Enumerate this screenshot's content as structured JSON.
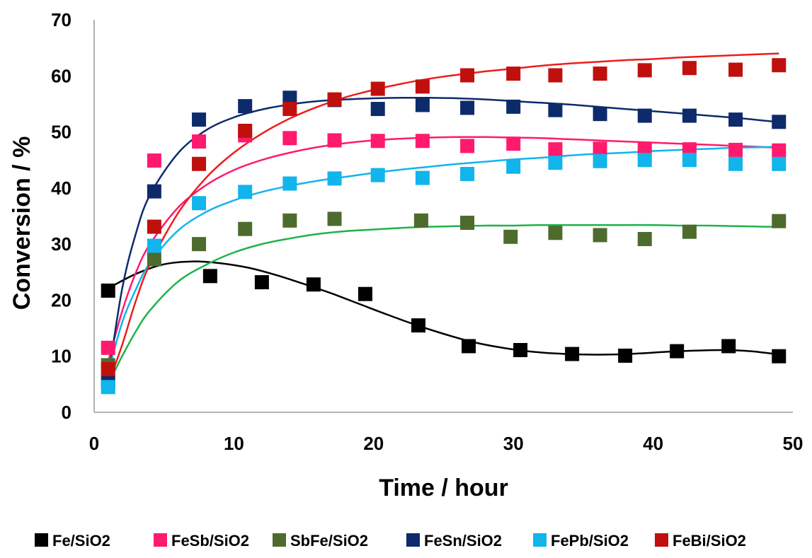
{
  "chart_data": {
    "type": "scatter",
    "xlabel": "Time / hour",
    "ylabel": "Conversion / %",
    "xlim": [
      0,
      50
    ],
    "ylim": [
      0,
      70
    ],
    "xticks": [
      "0",
      "10",
      "20",
      "30",
      "40",
      "50"
    ],
    "yticks": [
      "0",
      "10",
      "20",
      "30",
      "40",
      "50",
      "60",
      "70"
    ],
    "grid": false,
    "legend_position": "bottom",
    "series": [
      {
        "name": "Fe/SiO2",
        "color": "#000000",
        "fit_color": "#000000",
        "points": [
          [
            1,
            21.7
          ],
          [
            8.3,
            24.3
          ],
          [
            12,
            23.2
          ],
          [
            15.7,
            22.8
          ],
          [
            19.4,
            21.1
          ],
          [
            23.2,
            15.5
          ],
          [
            26.8,
            11.8
          ],
          [
            30.5,
            11.1
          ],
          [
            34.2,
            10.4
          ],
          [
            38,
            10.1
          ],
          [
            41.7,
            10.9
          ],
          [
            45.4,
            11.8
          ],
          [
            49,
            10
          ]
        ],
        "fit": [
          [
            1,
            22.1
          ],
          [
            3,
            24.7
          ],
          [
            5,
            26.4
          ],
          [
            7,
            26.9
          ],
          [
            9,
            26.6
          ],
          [
            11,
            25.8
          ],
          [
            13,
            24.5
          ],
          [
            15,
            22.9
          ],
          [
            17,
            21.2
          ],
          [
            19,
            19.3
          ],
          [
            21,
            17.4
          ],
          [
            23,
            15.6
          ],
          [
            25,
            14
          ],
          [
            27,
            12.6
          ],
          [
            29,
            11.6
          ],
          [
            31,
            10.9
          ],
          [
            33,
            10.5
          ],
          [
            35,
            10.3
          ],
          [
            37,
            10.3
          ],
          [
            39,
            10.5
          ],
          [
            41,
            10.8
          ],
          [
            43,
            11
          ],
          [
            45,
            11.1
          ],
          [
            47,
            10.9
          ],
          [
            49,
            10.3
          ]
        ]
      },
      {
        "name": "FeSb/SiO2",
        "color": "#ff1a6e",
        "fit_color": "#ff1a6e",
        "points": [
          [
            1,
            11.5
          ],
          [
            4.3,
            44.9
          ],
          [
            7.5,
            48.3
          ],
          [
            10.8,
            49.4
          ],
          [
            14,
            48.9
          ],
          [
            17.2,
            48.5
          ],
          [
            20.3,
            48.4
          ],
          [
            23.5,
            48.4
          ],
          [
            26.7,
            47.5
          ],
          [
            30,
            47.9
          ],
          [
            33,
            46.9
          ],
          [
            36.2,
            47
          ],
          [
            39.4,
            47
          ],
          [
            42.6,
            46.9
          ],
          [
            45.9,
            46.8
          ],
          [
            49,
            46.7
          ]
        ],
        "fit": [
          [
            1,
            9
          ],
          [
            2,
            18
          ],
          [
            3,
            25
          ],
          [
            4,
            30
          ],
          [
            6,
            36.5
          ],
          [
            8,
            40.5
          ],
          [
            10,
            43.2
          ],
          [
            12,
            45
          ],
          [
            14,
            46.3
          ],
          [
            16,
            47.3
          ],
          [
            18,
            48
          ],
          [
            20,
            48.5
          ],
          [
            22,
            48.8
          ],
          [
            24,
            49
          ],
          [
            26,
            49.1
          ],
          [
            28,
            49.1
          ],
          [
            30,
            49
          ],
          [
            32,
            48.9
          ],
          [
            34,
            48.7
          ],
          [
            36,
            48.5
          ],
          [
            38,
            48.3
          ],
          [
            40,
            48.1
          ],
          [
            42,
            47.9
          ],
          [
            44,
            47.7
          ],
          [
            46,
            47.5
          ],
          [
            48,
            47.3
          ],
          [
            49,
            47.2
          ]
        ]
      },
      {
        "name": "SbFe/SiO2",
        "color": "#4e6b2e",
        "fit_color": "#1fb24a",
        "points": [
          [
            1,
            8.4
          ],
          [
            4.3,
            27.3
          ],
          [
            7.5,
            30
          ],
          [
            10.8,
            32.7
          ],
          [
            14,
            34.2
          ],
          [
            17.2,
            34.5
          ],
          [
            23.4,
            34.2
          ],
          [
            26.7,
            33.8
          ],
          [
            29.8,
            31.3
          ],
          [
            33,
            32
          ],
          [
            36.2,
            31.6
          ],
          [
            39.4,
            30.9
          ],
          [
            42.6,
            32.2
          ],
          [
            49,
            34.1
          ]
        ],
        "fit": [
          [
            1,
            5
          ],
          [
            2,
            10
          ],
          [
            3,
            14.5
          ],
          [
            4,
            18.2
          ],
          [
            6,
            23.3
          ],
          [
            8,
            26.3
          ],
          [
            10,
            28.5
          ],
          [
            12,
            30
          ],
          [
            14,
            31
          ],
          [
            16,
            31.8
          ],
          [
            18,
            32.3
          ],
          [
            20,
            32.6
          ],
          [
            22,
            32.9
          ],
          [
            24,
            33.1
          ],
          [
            26,
            33.2
          ],
          [
            28,
            33.3
          ],
          [
            30,
            33.3
          ],
          [
            32,
            33.4
          ],
          [
            34,
            33.4
          ],
          [
            36,
            33.4
          ],
          [
            38,
            33.4
          ],
          [
            40,
            33.4
          ],
          [
            42,
            33.3
          ],
          [
            44,
            33.3
          ],
          [
            46,
            33.2
          ],
          [
            48,
            33.1
          ],
          [
            49,
            33.1
          ]
        ]
      },
      {
        "name": "FeSn/SiO2",
        "color": "#0d2b6b",
        "fit_color": "#0d2b6b",
        "points": [
          [
            1,
            5.4
          ],
          [
            4.3,
            39.4
          ],
          [
            7.5,
            52.2
          ],
          [
            10.8,
            54.6
          ],
          [
            14,
            56.1
          ],
          [
            17.2,
            55.7
          ],
          [
            20.3,
            54.1
          ],
          [
            23.5,
            54.8
          ],
          [
            26.7,
            54.3
          ],
          [
            30,
            54.5
          ],
          [
            33,
            53.9
          ],
          [
            36.2,
            53.2
          ],
          [
            39.4,
            52.9
          ],
          [
            42.6,
            52.9
          ],
          [
            45.9,
            52.2
          ],
          [
            49,
            51.8
          ]
        ],
        "fit": [
          [
            1,
            6
          ],
          [
            2,
            22
          ],
          [
            3,
            32
          ],
          [
            4,
            38.8
          ],
          [
            6,
            46.2
          ],
          [
            8,
            50.3
          ],
          [
            10,
            52.6
          ],
          [
            12,
            54
          ],
          [
            14,
            54.9
          ],
          [
            16,
            55.5
          ],
          [
            18,
            55.8
          ],
          [
            20,
            56
          ],
          [
            22,
            56.1
          ],
          [
            24,
            56.1
          ],
          [
            26,
            56
          ],
          [
            28,
            55.8
          ],
          [
            30,
            55.5
          ],
          [
            32,
            55.2
          ],
          [
            34,
            54.9
          ],
          [
            36,
            54.5
          ],
          [
            38,
            54.1
          ],
          [
            40,
            53.7
          ],
          [
            42,
            53.3
          ],
          [
            44,
            52.9
          ],
          [
            46,
            52.5
          ],
          [
            48,
            52
          ],
          [
            49,
            51.8
          ]
        ]
      },
      {
        "name": "FePb/SiO2",
        "color": "#12b4ec",
        "fit_color": "#12b4ec",
        "points": [
          [
            1,
            4.5
          ],
          [
            4.3,
            29.7
          ],
          [
            7.5,
            37.3
          ],
          [
            10.8,
            39.3
          ],
          [
            14,
            40.8
          ],
          [
            17.2,
            41.7
          ],
          [
            20.3,
            42.3
          ],
          [
            23.5,
            41.8
          ],
          [
            26.7,
            42.5
          ],
          [
            30,
            43.8
          ],
          [
            33,
            44.5
          ],
          [
            36.2,
            44.8
          ],
          [
            39.4,
            45
          ],
          [
            42.6,
            45
          ],
          [
            45.9,
            44.3
          ],
          [
            49,
            44.3
          ]
        ],
        "fit": [
          [
            1,
            7
          ],
          [
            2,
            16
          ],
          [
            3,
            22
          ],
          [
            4,
            26.7
          ],
          [
            6,
            32.4
          ],
          [
            8,
            35.7
          ],
          [
            10,
            37.8
          ],
          [
            12,
            39.3
          ],
          [
            14,
            40.4
          ],
          [
            16,
            41.3
          ],
          [
            18,
            42
          ],
          [
            20,
            42.7
          ],
          [
            22,
            43.3
          ],
          [
            24,
            43.8
          ],
          [
            26,
            44.3
          ],
          [
            28,
            44.7
          ],
          [
            30,
            45.1
          ],
          [
            32,
            45.4
          ],
          [
            34,
            45.8
          ],
          [
            36,
            46.1
          ],
          [
            38,
            46.3
          ],
          [
            40,
            46.6
          ],
          [
            42,
            46.8
          ],
          [
            44,
            47
          ],
          [
            46,
            47.2
          ],
          [
            48,
            47.3
          ],
          [
            49,
            47.4
          ]
        ]
      },
      {
        "name": "FeBi/SiO2",
        "color": "#c0100e",
        "fit_color": "#ee1c1c",
        "points": [
          [
            1,
            7.7
          ],
          [
            4.3,
            33.1
          ],
          [
            7.5,
            44.3
          ],
          [
            10.8,
            50.2
          ],
          [
            14,
            54.1
          ],
          [
            17.2,
            55.8
          ],
          [
            20.3,
            57.7
          ],
          [
            23.5,
            58.1
          ],
          [
            26.7,
            60.1
          ],
          [
            30,
            60.4
          ],
          [
            33,
            60.1
          ],
          [
            36.2,
            60.4
          ],
          [
            39.4,
            61
          ],
          [
            42.6,
            61.4
          ],
          [
            45.9,
            61.1
          ],
          [
            49,
            61.9
          ]
        ],
        "fit": [
          [
            1,
            5
          ],
          [
            2,
            12
          ],
          [
            3,
            20
          ],
          [
            4,
            26.5
          ],
          [
            6,
            35.5
          ],
          [
            8,
            41.8
          ],
          [
            10,
            46.3
          ],
          [
            12,
            49.7
          ],
          [
            14,
            52.4
          ],
          [
            16,
            54.5
          ],
          [
            18,
            56.2
          ],
          [
            20,
            57.5
          ],
          [
            22,
            58.6
          ],
          [
            24,
            59.5
          ],
          [
            26,
            60.2
          ],
          [
            28,
            60.8
          ],
          [
            30,
            61.3
          ],
          [
            32,
            61.8
          ],
          [
            34,
            62.2
          ],
          [
            36,
            62.5
          ],
          [
            38,
            62.8
          ],
          [
            40,
            63
          ],
          [
            42,
            63.3
          ],
          [
            44,
            63.5
          ],
          [
            46,
            63.7
          ],
          [
            48,
            63.9
          ],
          [
            49,
            64
          ]
        ]
      }
    ]
  }
}
